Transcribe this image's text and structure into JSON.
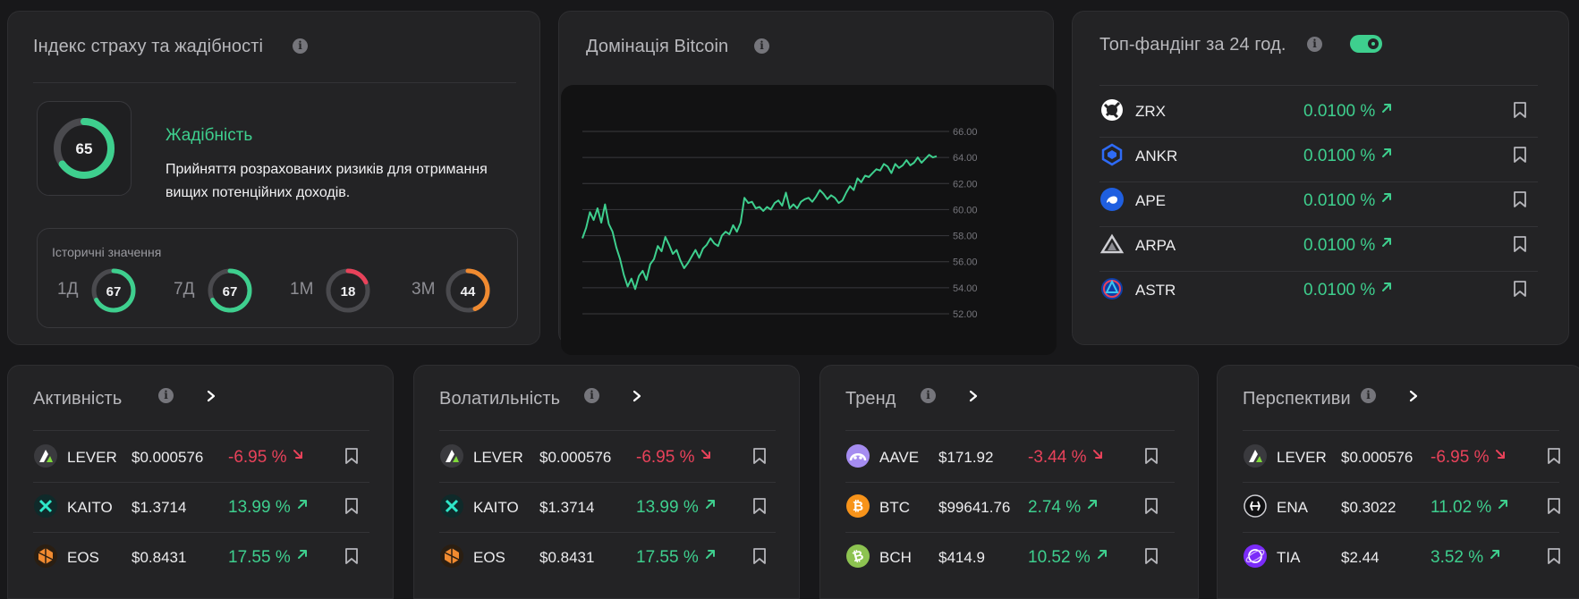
{
  "fear_greed": {
    "title": "Індекс страху та жадібності",
    "value": "65",
    "state": "Жадібність",
    "description": "Прийняття розрахованих ризиків для отримання вищих потенційних доходів.",
    "history_label": "Історичні значення",
    "history": [
      {
        "period": "1Д",
        "value": "67",
        "level": 67,
        "color": "#3ecf8e"
      },
      {
        "period": "7Д",
        "value": "67",
        "level": 67,
        "color": "#3ecf8e"
      },
      {
        "period": "1М",
        "value": "18",
        "level": 18,
        "color": "#e8425a"
      },
      {
        "period": "3М",
        "value": "44",
        "level": 44,
        "color": "#f08a30"
      }
    ],
    "gauge_color": "#3ecf8e",
    "gauge_level": 65
  },
  "btc_dominance": {
    "title": "Домінація Bitcoin",
    "chart_data": {
      "type": "line",
      "ylim": [
        52,
        66
      ],
      "y_ticks": [
        "66.00",
        "64.00",
        "62.00",
        "60.00",
        "58.00",
        "56.00",
        "54.00",
        "52.00"
      ],
      "series_color": "#3ecf8e",
      "values": [
        57.8,
        58.6,
        59.8,
        59.2,
        60.1,
        59.0,
        60.4,
        58.9,
        58.3,
        57.1,
        56.2,
        55.0,
        54.1,
        54.7,
        53.9,
        54.9,
        55.3,
        54.6,
        55.8,
        56.2,
        57.2,
        56.8,
        57.9,
        57.3,
        56.6,
        56.9,
        56.1,
        55.5,
        55.9,
        56.4,
        56.9,
        56.3,
        57.0,
        57.3,
        57.8,
        57.4,
        57.2,
        58.0,
        58.3,
        58.1,
        58.8,
        58.3,
        59.0,
        60.9,
        60.5,
        60.6,
        60.1,
        60.2,
        59.9,
        60.2,
        60.0,
        60.5,
        60.7,
        60.3,
        61.3,
        60.1,
        60.4,
        60.1,
        60.6,
        60.8,
        60.9,
        60.6,
        61.0,
        61.5,
        61.2,
        60.8,
        61.1,
        60.9,
        60.5,
        60.7,
        61.3,
        61.8,
        61.5,
        62.4,
        62.1,
        62.6,
        62.5,
        62.8,
        63.1,
        63.0,
        63.5,
        63.3,
        62.8,
        63.5,
        63.2,
        63.4,
        63.8,
        63.4,
        63.6,
        64.0,
        63.6,
        63.9,
        64.2,
        64.0,
        64.1
      ]
    }
  },
  "funding": {
    "title": "Топ-фандінг за 24 год.",
    "rows": [
      {
        "symbol": "ZRX",
        "rate": "0.0100 %",
        "icon": "zrx-icon",
        "color": "#ffffff"
      },
      {
        "symbol": "ANKR",
        "rate": "0.0100 %",
        "icon": "ankr-icon",
        "color": "#2e6bf6"
      },
      {
        "symbol": "APE",
        "rate": "0.0100 %",
        "icon": "ape-icon",
        "color": "#1f5fe0"
      },
      {
        "symbol": "ARPA",
        "rate": "0.0100 %",
        "icon": "arpa-icon",
        "color": "#cfcfd4"
      },
      {
        "symbol": "ASTR",
        "rate": "0.0100 %",
        "icon": "astr-icon",
        "color": "#1a7cf0"
      }
    ]
  },
  "lists": [
    {
      "title": "Активність",
      "rows": [
        {
          "symbol": "LEVER",
          "price": "$0.000576",
          "change": "-6.95 %",
          "dir": "down",
          "icon": "lever-icon"
        },
        {
          "symbol": "KAITO",
          "price": "$1.3714",
          "change": "13.99 %",
          "dir": "up",
          "icon": "kaito-icon"
        },
        {
          "symbol": "EOS",
          "price": "$0.8431",
          "change": "17.55 %",
          "dir": "up",
          "icon": "eos-icon"
        }
      ]
    },
    {
      "title": "Волатильність",
      "rows": [
        {
          "symbol": "LEVER",
          "price": "$0.000576",
          "change": "-6.95 %",
          "dir": "down",
          "icon": "lever-icon"
        },
        {
          "symbol": "KAITO",
          "price": "$1.3714",
          "change": "13.99 %",
          "dir": "up",
          "icon": "kaito-icon"
        },
        {
          "symbol": "EOS",
          "price": "$0.8431",
          "change": "17.55 %",
          "dir": "up",
          "icon": "eos-icon"
        }
      ]
    },
    {
      "title": "Тренд",
      "rows": [
        {
          "symbol": "AAVE",
          "price": "$171.92",
          "change": "-3.44 %",
          "dir": "down",
          "icon": "aave-icon"
        },
        {
          "symbol": "BTC",
          "price": "$99641.76",
          "change": "2.74 %",
          "dir": "up",
          "icon": "btc-icon"
        },
        {
          "symbol": "BCH",
          "price": "$414.9",
          "change": "10.52 %",
          "dir": "up",
          "icon": "bch-icon"
        }
      ]
    },
    {
      "title": "Перспективи",
      "rows": [
        {
          "symbol": "LEVER",
          "price": "$0.000576",
          "change": "-6.95 %",
          "dir": "down",
          "icon": "lever-icon"
        },
        {
          "symbol": "ENA",
          "price": "$0.3022",
          "change": "11.02 %",
          "dir": "up",
          "icon": "ena-icon"
        },
        {
          "symbol": "TIA",
          "price": "$2.44",
          "change": "3.52 %",
          "dir": "up",
          "icon": "tia-icon"
        }
      ]
    }
  ]
}
